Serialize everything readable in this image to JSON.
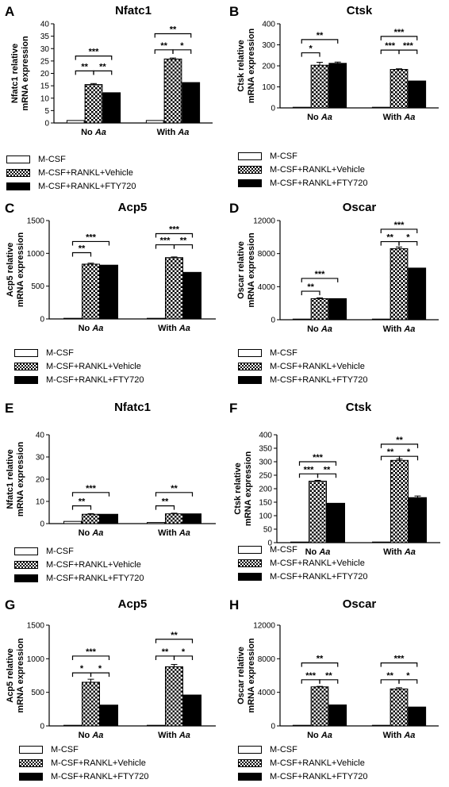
{
  "legend_items": [
    {
      "label": "M-CSF",
      "style": "white"
    },
    {
      "label": "M-CSF+RANKL+Vehicle",
      "style": "checker"
    },
    {
      "label": "M-CSF+RANKL+FTY720",
      "style": "black"
    }
  ],
  "chart_data": [
    {
      "letter": "A",
      "type": "bar",
      "title": "Nfatc1",
      "ylabel_lines": [
        "Nfatc1 relative",
        "mRNA expression"
      ],
      "ylim": [
        0,
        40
      ],
      "yticks": [
        0,
        5,
        10,
        15,
        20,
        25,
        30,
        35,
        40
      ],
      "ytick_labels": [
        "0",
        "5",
        "10",
        "15",
        "20",
        "25",
        "30",
        "35",
        "40"
      ],
      "groups": [
        {
          "label": "No",
          "italic": "Aa"
        },
        {
          "label": "With",
          "italic": "Aa"
        }
      ],
      "series": [
        {
          "name": "M-CSF",
          "values": [
            1,
            1
          ],
          "errors": [
            0,
            0
          ]
        },
        {
          "name": "M-CSF+RANKL+Vehicle",
          "values": [
            15.5,
            25.8
          ],
          "errors": [
            0.4,
            0.4
          ]
        },
        {
          "name": "M-CSF+RANKL+FTY720",
          "values": [
            12.2,
            16.3
          ],
          "errors": [
            0,
            0
          ]
        }
      ],
      "significance": [
        {
          "group": 0,
          "from": 0,
          "to": 1,
          "label": "**",
          "y": 21
        },
        {
          "group": 0,
          "from": 1,
          "to": 2,
          "label": "**",
          "y": 21
        },
        {
          "group": 0,
          "from": 0,
          "to": 2,
          "label": "***",
          "y": 27
        },
        {
          "group": 1,
          "from": 0,
          "to": 1,
          "label": "**",
          "y": 29.5
        },
        {
          "group": 1,
          "from": 1,
          "to": 2,
          "label": "*",
          "y": 29.5
        },
        {
          "group": 1,
          "from": 0,
          "to": 2,
          "label": "**",
          "y": 36
        }
      ]
    },
    {
      "letter": "B",
      "type": "bar",
      "title": "Ctsk",
      "ylabel_lines": [
        "Ctsk relative",
        "mRNA expression"
      ],
      "ylim": [
        0,
        400
      ],
      "yticks": [
        0,
        100,
        200,
        300,
        400
      ],
      "ytick_labels": [
        "0",
        "100",
        "200",
        "300",
        "400"
      ],
      "groups": [
        {
          "label": "No",
          "italic": "Aa"
        },
        {
          "label": "With",
          "italic": "Aa"
        }
      ],
      "series": [
        {
          "name": "M-CSF",
          "values": [
            2,
            2
          ],
          "errors": [
            0,
            0
          ]
        },
        {
          "name": "M-CSF+RANKL+Vehicle",
          "values": [
            203,
            183
          ],
          "errors": [
            14,
            3
          ]
        },
        {
          "name": "M-CSF+RANKL+FTY720",
          "values": [
            212,
            128
          ],
          "errors": [
            6,
            0
          ]
        }
      ],
      "significance": [
        {
          "group": 0,
          "from": 0,
          "to": 1,
          "label": "*",
          "y": 262
        },
        {
          "group": 0,
          "from": 0,
          "to": 2,
          "label": "**",
          "y": 325
        },
        {
          "group": 1,
          "from": 0,
          "to": 1,
          "label": "***",
          "y": 275
        },
        {
          "group": 1,
          "from": 1,
          "to": 2,
          "label": "***",
          "y": 275
        },
        {
          "group": 1,
          "from": 0,
          "to": 2,
          "label": "***",
          "y": 340
        }
      ]
    },
    {
      "letter": "C",
      "type": "bar",
      "title": "Acp5",
      "ylabel_lines": [
        "Acp5 relative",
        "mRNA expression"
      ],
      "ylim": [
        0,
        1500
      ],
      "yticks": [
        0,
        500,
        1000,
        1500
      ],
      "ytick_labels": [
        "0",
        "500",
        "1000",
        "1500"
      ],
      "groups": [
        {
          "label": "No",
          "italic": "Aa"
        },
        {
          "label": "With",
          "italic": "Aa"
        }
      ],
      "series": [
        {
          "name": "M-CSF",
          "values": [
            5,
            5
          ],
          "errors": [
            0,
            0
          ]
        },
        {
          "name": "M-CSF+RANKL+Vehicle",
          "values": [
            835,
            935
          ],
          "errors": [
            15,
            10
          ]
        },
        {
          "name": "M-CSF+RANKL+FTY720",
          "values": [
            820,
            710
          ],
          "errors": [
            0,
            0
          ]
        }
      ],
      "significance": [
        {
          "group": 0,
          "from": 0,
          "to": 1,
          "label": "**",
          "y": 1010
        },
        {
          "group": 0,
          "from": 0,
          "to": 2,
          "label": "***",
          "y": 1180
        },
        {
          "group": 1,
          "from": 0,
          "to": 1,
          "label": "***",
          "y": 1130
        },
        {
          "group": 1,
          "from": 1,
          "to": 2,
          "label": "**",
          "y": 1130
        },
        {
          "group": 1,
          "from": 0,
          "to": 2,
          "label": "***",
          "y": 1300
        }
      ]
    },
    {
      "letter": "D",
      "type": "bar",
      "title": "Oscar",
      "ylabel_lines": [
        "Oscar relative",
        "mRNA expression"
      ],
      "ylim": [
        0,
        12000
      ],
      "yticks": [
        0,
        4000,
        8000,
        12000
      ],
      "ytick_labels": [
        "0",
        "4000",
        "8000",
        "12000"
      ],
      "groups": [
        {
          "label": "No",
          "italic": "Aa"
        },
        {
          "label": "With",
          "italic": "Aa"
        }
      ],
      "series": [
        {
          "name": "M-CSF",
          "values": [
            30,
            30
          ],
          "errors": [
            0,
            0
          ]
        },
        {
          "name": "M-CSF+RANKL+Vehicle",
          "values": [
            2550,
            8600
          ],
          "errors": [
            100,
            200
          ]
        },
        {
          "name": "M-CSF+RANKL+FTY720",
          "values": [
            2550,
            6250
          ],
          "errors": [
            0,
            0
          ]
        }
      ],
      "significance": [
        {
          "group": 0,
          "from": 0,
          "to": 1,
          "label": "**",
          "y": 3450
        },
        {
          "group": 0,
          "from": 0,
          "to": 2,
          "label": "***",
          "y": 5000
        },
        {
          "group": 1,
          "from": 0,
          "to": 1,
          "label": "**",
          "y": 9450
        },
        {
          "group": 1,
          "from": 1,
          "to": 2,
          "label": "*",
          "y": 9450
        },
        {
          "group": 1,
          "from": 0,
          "to": 2,
          "label": "***",
          "y": 10950
        }
      ]
    },
    {
      "letter": "E",
      "type": "bar",
      "title": "Nfatc1",
      "ylabel_lines": [
        "Nfatc1 relative",
        "mRNA expression"
      ],
      "ylim": [
        0,
        40
      ],
      "yticks": [
        0,
        10,
        20,
        30,
        40
      ],
      "ytick_labels": [
        "0",
        "10",
        "20",
        "30",
        "40"
      ],
      "groups": [
        {
          "label": "No",
          "italic": "Aa"
        },
        {
          "label": "With",
          "italic": "Aa"
        }
      ],
      "series": [
        {
          "name": "M-CSF",
          "values": [
            1,
            0.5
          ],
          "errors": [
            0,
            0
          ]
        },
        {
          "name": "M-CSF+RANKL+Vehicle",
          "values": [
            4.2,
            4.4
          ],
          "errors": [
            0.3,
            0.3
          ]
        },
        {
          "name": "M-CSF+RANKL+FTY720",
          "values": [
            4.2,
            4.4
          ],
          "errors": [
            0,
            0
          ]
        }
      ],
      "significance": [
        {
          "group": 0,
          "from": 0,
          "to": 1,
          "label": "**",
          "y": 8
        },
        {
          "group": 0,
          "from": 0,
          "to": 2,
          "label": "***",
          "y": 14
        },
        {
          "group": 1,
          "from": 0,
          "to": 1,
          "label": "**",
          "y": 8
        },
        {
          "group": 1,
          "from": 0,
          "to": 2,
          "label": "**",
          "y": 14
        }
      ]
    },
    {
      "letter": "F",
      "type": "bar",
      "title": "Ctsk",
      "ylabel_lines": [
        "Ctsk relative",
        "mRNA expression"
      ],
      "ylim": [
        0,
        400
      ],
      "yticks": [
        0,
        50,
        100,
        150,
        200,
        250,
        300,
        350,
        400
      ],
      "ytick_labels": [
        "0",
        "50",
        "100",
        "150",
        "200",
        "250",
        "300",
        "350",
        "400"
      ],
      "groups": [
        {
          "label": "No",
          "italic": "Aa"
        },
        {
          "label": "With",
          "italic": "Aa"
        }
      ],
      "series": [
        {
          "name": "M-CSF",
          "values": [
            2,
            2
          ],
          "errors": [
            0,
            0
          ]
        },
        {
          "name": "M-CSF+RANKL+Vehicle",
          "values": [
            228,
            305
          ],
          "errors": [
            3,
            5
          ]
        },
        {
          "name": "M-CSF+RANKL+FTY720",
          "values": [
            146,
            167
          ],
          "errors": [
            0,
            6
          ]
        }
      ],
      "significance": [
        {
          "group": 0,
          "from": 0,
          "to": 1,
          "label": "***",
          "y": 255
        },
        {
          "group": 0,
          "from": 1,
          "to": 2,
          "label": "**",
          "y": 255
        },
        {
          "group": 0,
          "from": 0,
          "to": 2,
          "label": "***",
          "y": 300
        },
        {
          "group": 1,
          "from": 0,
          "to": 1,
          "label": "**",
          "y": 320
        },
        {
          "group": 1,
          "from": 1,
          "to": 2,
          "label": "*",
          "y": 320
        },
        {
          "group": 1,
          "from": 0,
          "to": 2,
          "label": "**",
          "y": 365
        }
      ]
    },
    {
      "letter": "G",
      "type": "bar",
      "title": "Acp5",
      "ylabel_lines": [
        "Acp5 relative",
        "mRNA expression"
      ],
      "ylim": [
        0,
        1500
      ],
      "yticks": [
        0,
        500,
        1000,
        1500
      ],
      "ytick_labels": [
        "0",
        "500",
        "1000",
        "1500"
      ],
      "groups": [
        {
          "label": "No",
          "italic": "Aa"
        },
        {
          "label": "With",
          "italic": "Aa"
        }
      ],
      "series": [
        {
          "name": "M-CSF",
          "values": [
            5,
            5
          ],
          "errors": [
            0,
            0
          ]
        },
        {
          "name": "M-CSF+RANKL+Vehicle",
          "values": [
            650,
            880
          ],
          "errors": [
            45,
            35
          ]
        },
        {
          "name": "M-CSF+RANKL+FTY720",
          "values": [
            310,
            460
          ],
          "errors": [
            0,
            0
          ]
        }
      ],
      "significance": [
        {
          "group": 0,
          "from": 0,
          "to": 1,
          "label": "*",
          "y": 790
        },
        {
          "group": 0,
          "from": 1,
          "to": 2,
          "label": "*",
          "y": 790
        },
        {
          "group": 0,
          "from": 0,
          "to": 2,
          "label": "***",
          "y": 1040
        },
        {
          "group": 1,
          "from": 0,
          "to": 1,
          "label": "**",
          "y": 1040
        },
        {
          "group": 1,
          "from": 1,
          "to": 2,
          "label": "*",
          "y": 1040
        },
        {
          "group": 1,
          "from": 0,
          "to": 2,
          "label": "**",
          "y": 1290
        }
      ]
    },
    {
      "letter": "H",
      "type": "bar",
      "title": "Oscar",
      "ylabel_lines": [
        "Oscar relative",
        "mRNA expression"
      ],
      "ylim": [
        0,
        12000
      ],
      "yticks": [
        0,
        4000,
        8000,
        12000
      ],
      "ytick_labels": [
        "0",
        "4000",
        "8000",
        "12000"
      ],
      "groups": [
        {
          "label": "No",
          "italic": "Aa"
        },
        {
          "label": "With",
          "italic": "Aa"
        }
      ],
      "series": [
        {
          "name": "M-CSF",
          "values": [
            30,
            30
          ],
          "errors": [
            0,
            0
          ]
        },
        {
          "name": "M-CSF+RANKL+Vehicle",
          "values": [
            4650,
            4400
          ],
          "errors": [
            60,
            150
          ]
        },
        {
          "name": "M-CSF+RANKL+FTY720",
          "values": [
            2500,
            2250
          ],
          "errors": [
            0,
            0
          ]
        }
      ],
      "significance": [
        {
          "group": 0,
          "from": 0,
          "to": 1,
          "label": "***",
          "y": 5500
        },
        {
          "group": 0,
          "from": 1,
          "to": 2,
          "label": "**",
          "y": 5500
        },
        {
          "group": 0,
          "from": 0,
          "to": 2,
          "label": "**",
          "y": 7500
        },
        {
          "group": 1,
          "from": 0,
          "to": 1,
          "label": "**",
          "y": 5500
        },
        {
          "group": 1,
          "from": 1,
          "to": 2,
          "label": "*",
          "y": 5500
        },
        {
          "group": 1,
          "from": 0,
          "to": 2,
          "label": "***",
          "y": 7500
        }
      ]
    }
  ]
}
